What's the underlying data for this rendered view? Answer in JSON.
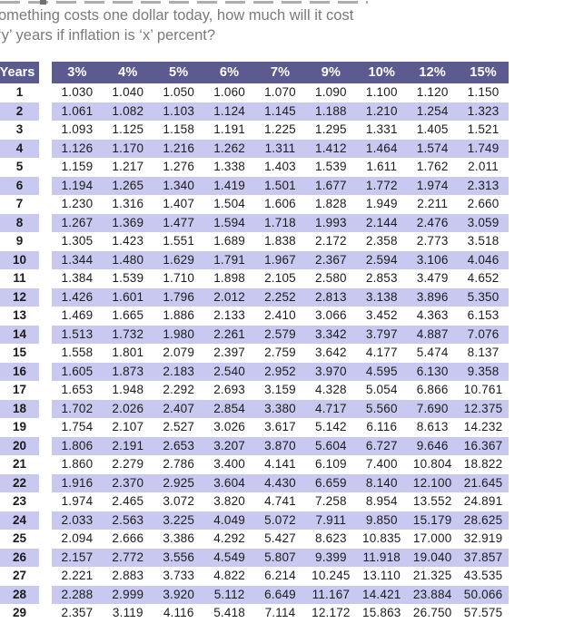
{
  "intro": {
    "line1": "omething costs one dollar today, how much will it cost",
    "line2": "‘y’ years if inflation is ‘x’ percent?"
  },
  "table": {
    "years_header": "Years",
    "rate_headers": [
      "3%",
      "4%",
      "5%",
      "6%",
      "7%",
      "9%",
      "10%",
      "12%",
      "15%"
    ],
    "rows": [
      {
        "year": "1",
        "values": [
          "1.030",
          "1.040",
          "1.050",
          "1.060",
          "1.070",
          "1.090",
          "1.100",
          "1.120",
          "1.150"
        ]
      },
      {
        "year": "2",
        "values": [
          "1.061",
          "1.082",
          "1.103",
          "1.124",
          "1.145",
          "1.188",
          "1.210",
          "1.254",
          "1.323"
        ]
      },
      {
        "year": "3",
        "values": [
          "1.093",
          "1.125",
          "1.158",
          "1.191",
          "1.225",
          "1.295",
          "1.331",
          "1.405",
          "1.521"
        ]
      },
      {
        "year": "4",
        "values": [
          "1.126",
          "1.170",
          "1.216",
          "1.262",
          "1.311",
          "1.412",
          "1.464",
          "1.574",
          "1.749"
        ]
      },
      {
        "year": "5",
        "values": [
          "1.159",
          "1.217",
          "1.276",
          "1.338",
          "1.403",
          "1.539",
          "1.611",
          "1.762",
          "2.011"
        ]
      },
      {
        "year": "6",
        "values": [
          "1.194",
          "1.265",
          "1.340",
          "1.419",
          "1.501",
          "1.677",
          "1.772",
          "1.974",
          "2.313"
        ]
      },
      {
        "year": "7",
        "values": [
          "1.230",
          "1.316",
          "1.407",
          "1.504",
          "1.606",
          "1.828",
          "1.949",
          "2.211",
          "2.660"
        ]
      },
      {
        "year": "8",
        "values": [
          "1.267",
          "1.369",
          "1.477",
          "1.594",
          "1.718",
          "1.993",
          "2.144",
          "2.476",
          "3.059"
        ]
      },
      {
        "year": "9",
        "values": [
          "1.305",
          "1.423",
          "1.551",
          "1.689",
          "1.838",
          "2.172",
          "2.358",
          "2.773",
          "3.518"
        ]
      },
      {
        "year": "10",
        "values": [
          "1.344",
          "1.480",
          "1.629",
          "1.791",
          "1.967",
          "2.367",
          "2.594",
          "3.106",
          "4.046"
        ]
      },
      {
        "year": "11",
        "values": [
          "1.384",
          "1.539",
          "1.710",
          "1.898",
          "2.105",
          "2.580",
          "2.853",
          "3.479",
          "4.652"
        ]
      },
      {
        "year": "12",
        "values": [
          "1.426",
          "1.601",
          "1.796",
          "2.012",
          "2.252",
          "2.813",
          "3.138",
          "3.896",
          "5.350"
        ]
      },
      {
        "year": "13",
        "values": [
          "1.469",
          "1.665",
          "1.886",
          "2.133",
          "2.410",
          "3.066",
          "3.452",
          "4.363",
          "6.153"
        ]
      },
      {
        "year": "14",
        "values": [
          "1.513",
          "1.732",
          "1.980",
          "2.261",
          "2.579",
          "3.342",
          "3.797",
          "4.887",
          "7.076"
        ]
      },
      {
        "year": "15",
        "values": [
          "1.558",
          "1.801",
          "2.079",
          "2.397",
          "2.759",
          "3.642",
          "4.177",
          "5.474",
          "8.137"
        ]
      },
      {
        "year": "16",
        "values": [
          "1.605",
          "1.873",
          "2.183",
          "2.540",
          "2.952",
          "3.970",
          "4.595",
          "6.130",
          "9.358"
        ]
      },
      {
        "year": "17",
        "values": [
          "1.653",
          "1.948",
          "2.292",
          "2.693",
          "3.159",
          "4.328",
          "5.054",
          "6.866",
          "10.761"
        ]
      },
      {
        "year": "18",
        "values": [
          "1.702",
          "2.026",
          "2.407",
          "2.854",
          "3.380",
          "4.717",
          "5.560",
          "7.690",
          "12.375"
        ]
      },
      {
        "year": "19",
        "values": [
          "1.754",
          "2.107",
          "2.527",
          "3.026",
          "3.617",
          "5.142",
          "6.116",
          "8.613",
          "14.232"
        ]
      },
      {
        "year": "20",
        "values": [
          "1.806",
          "2.191",
          "2.653",
          "3.207",
          "3.870",
          "5.604",
          "6.727",
          "9.646",
          "16.367"
        ]
      },
      {
        "year": "21",
        "values": [
          "1.860",
          "2.279",
          "2.786",
          "3.400",
          "4.141",
          "6.109",
          "7.400",
          "10.804",
          "18.822"
        ]
      },
      {
        "year": "22",
        "values": [
          "1.916",
          "2.370",
          "2.925",
          "3.604",
          "4.430",
          "6.659",
          "8.140",
          "12.100",
          "21.645"
        ]
      },
      {
        "year": "23",
        "values": [
          "1.974",
          "2.465",
          "3.072",
          "3.820",
          "4.741",
          "7.258",
          "8.954",
          "13.552",
          "24.891"
        ]
      },
      {
        "year": "24",
        "values": [
          "2.033",
          "2.563",
          "3.225",
          "4.049",
          "5.072",
          "7.911",
          "9.850",
          "15.179",
          "28.625"
        ]
      },
      {
        "year": "25",
        "values": [
          "2.094",
          "2.666",
          "3.386",
          "4.292",
          "5.427",
          "8.623",
          "10.835",
          "17.000",
          "32.919"
        ]
      },
      {
        "year": "26",
        "values": [
          "2.157",
          "2.772",
          "3.556",
          "4.549",
          "5.807",
          "9.399",
          "11.918",
          "19.040",
          "37.857"
        ]
      },
      {
        "year": "27",
        "values": [
          "2.221",
          "2.883",
          "3.733",
          "4.822",
          "6.214",
          "10.245",
          "13.110",
          "21.325",
          "43.535"
        ]
      },
      {
        "year": "28",
        "values": [
          "2.288",
          "2.999",
          "3.920",
          "5.112",
          "6.649",
          "11.167",
          "14.421",
          "23.884",
          "50.066"
        ]
      },
      {
        "year": "29",
        "values": [
          "2.357",
          "3.119",
          "4.116",
          "5.418",
          "7.114",
          "12.172",
          "15.863",
          "26.750",
          "57.575"
        ]
      }
    ]
  },
  "colors": {
    "header_bg": "#5b5b8f",
    "stripe_bg": "#c8c8f0",
    "header_text": "#ffffff",
    "cell_text": "#1c1c1c",
    "intro_text": "#7a7a7a"
  }
}
